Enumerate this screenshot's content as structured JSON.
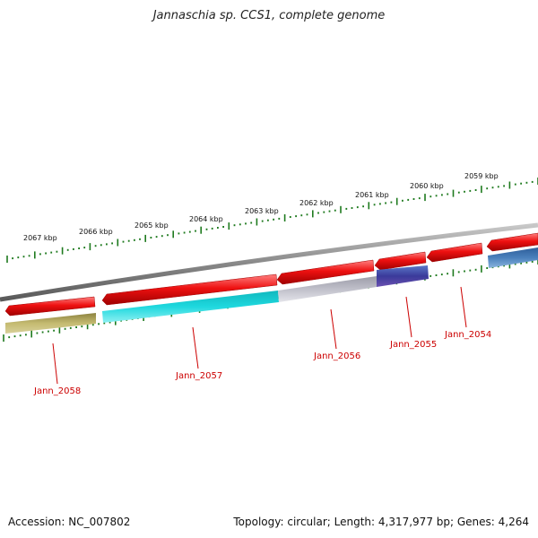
{
  "title": "Jannaschia sp. CCS1, complete genome",
  "footer": {
    "accession": "Accession: NC_007802",
    "topology": "Topology: circular; Length: 4,317,977 bp; Genes: 4,264"
  },
  "colors": {
    "forward_gene": "#ee1111",
    "backbone": "#808080",
    "tick": "#1e7a1e",
    "label": "#cc0000"
  },
  "kbp_labels": [
    "2067 kbp",
    "2066 kbp",
    "2065 kbp",
    "2064 kbp",
    "2063 kbp",
    "2062 kbp",
    "2061 kbp",
    "2060 kbp",
    "2059 kbp"
  ],
  "genes": [
    {
      "name": "Jann_2058",
      "color": "#bfb56a"
    },
    {
      "name": "Jann_2057",
      "color": "#19d2d8"
    },
    {
      "name": "Jann_2056",
      "color": "#b9b9c4"
    },
    {
      "name": "Jann_2055",
      "color": "#4a3d9a"
    },
    {
      "name": "Jann_2054",
      "color": ""
    },
    {
      "name": "",
      "color": "#4a7db8"
    }
  ]
}
